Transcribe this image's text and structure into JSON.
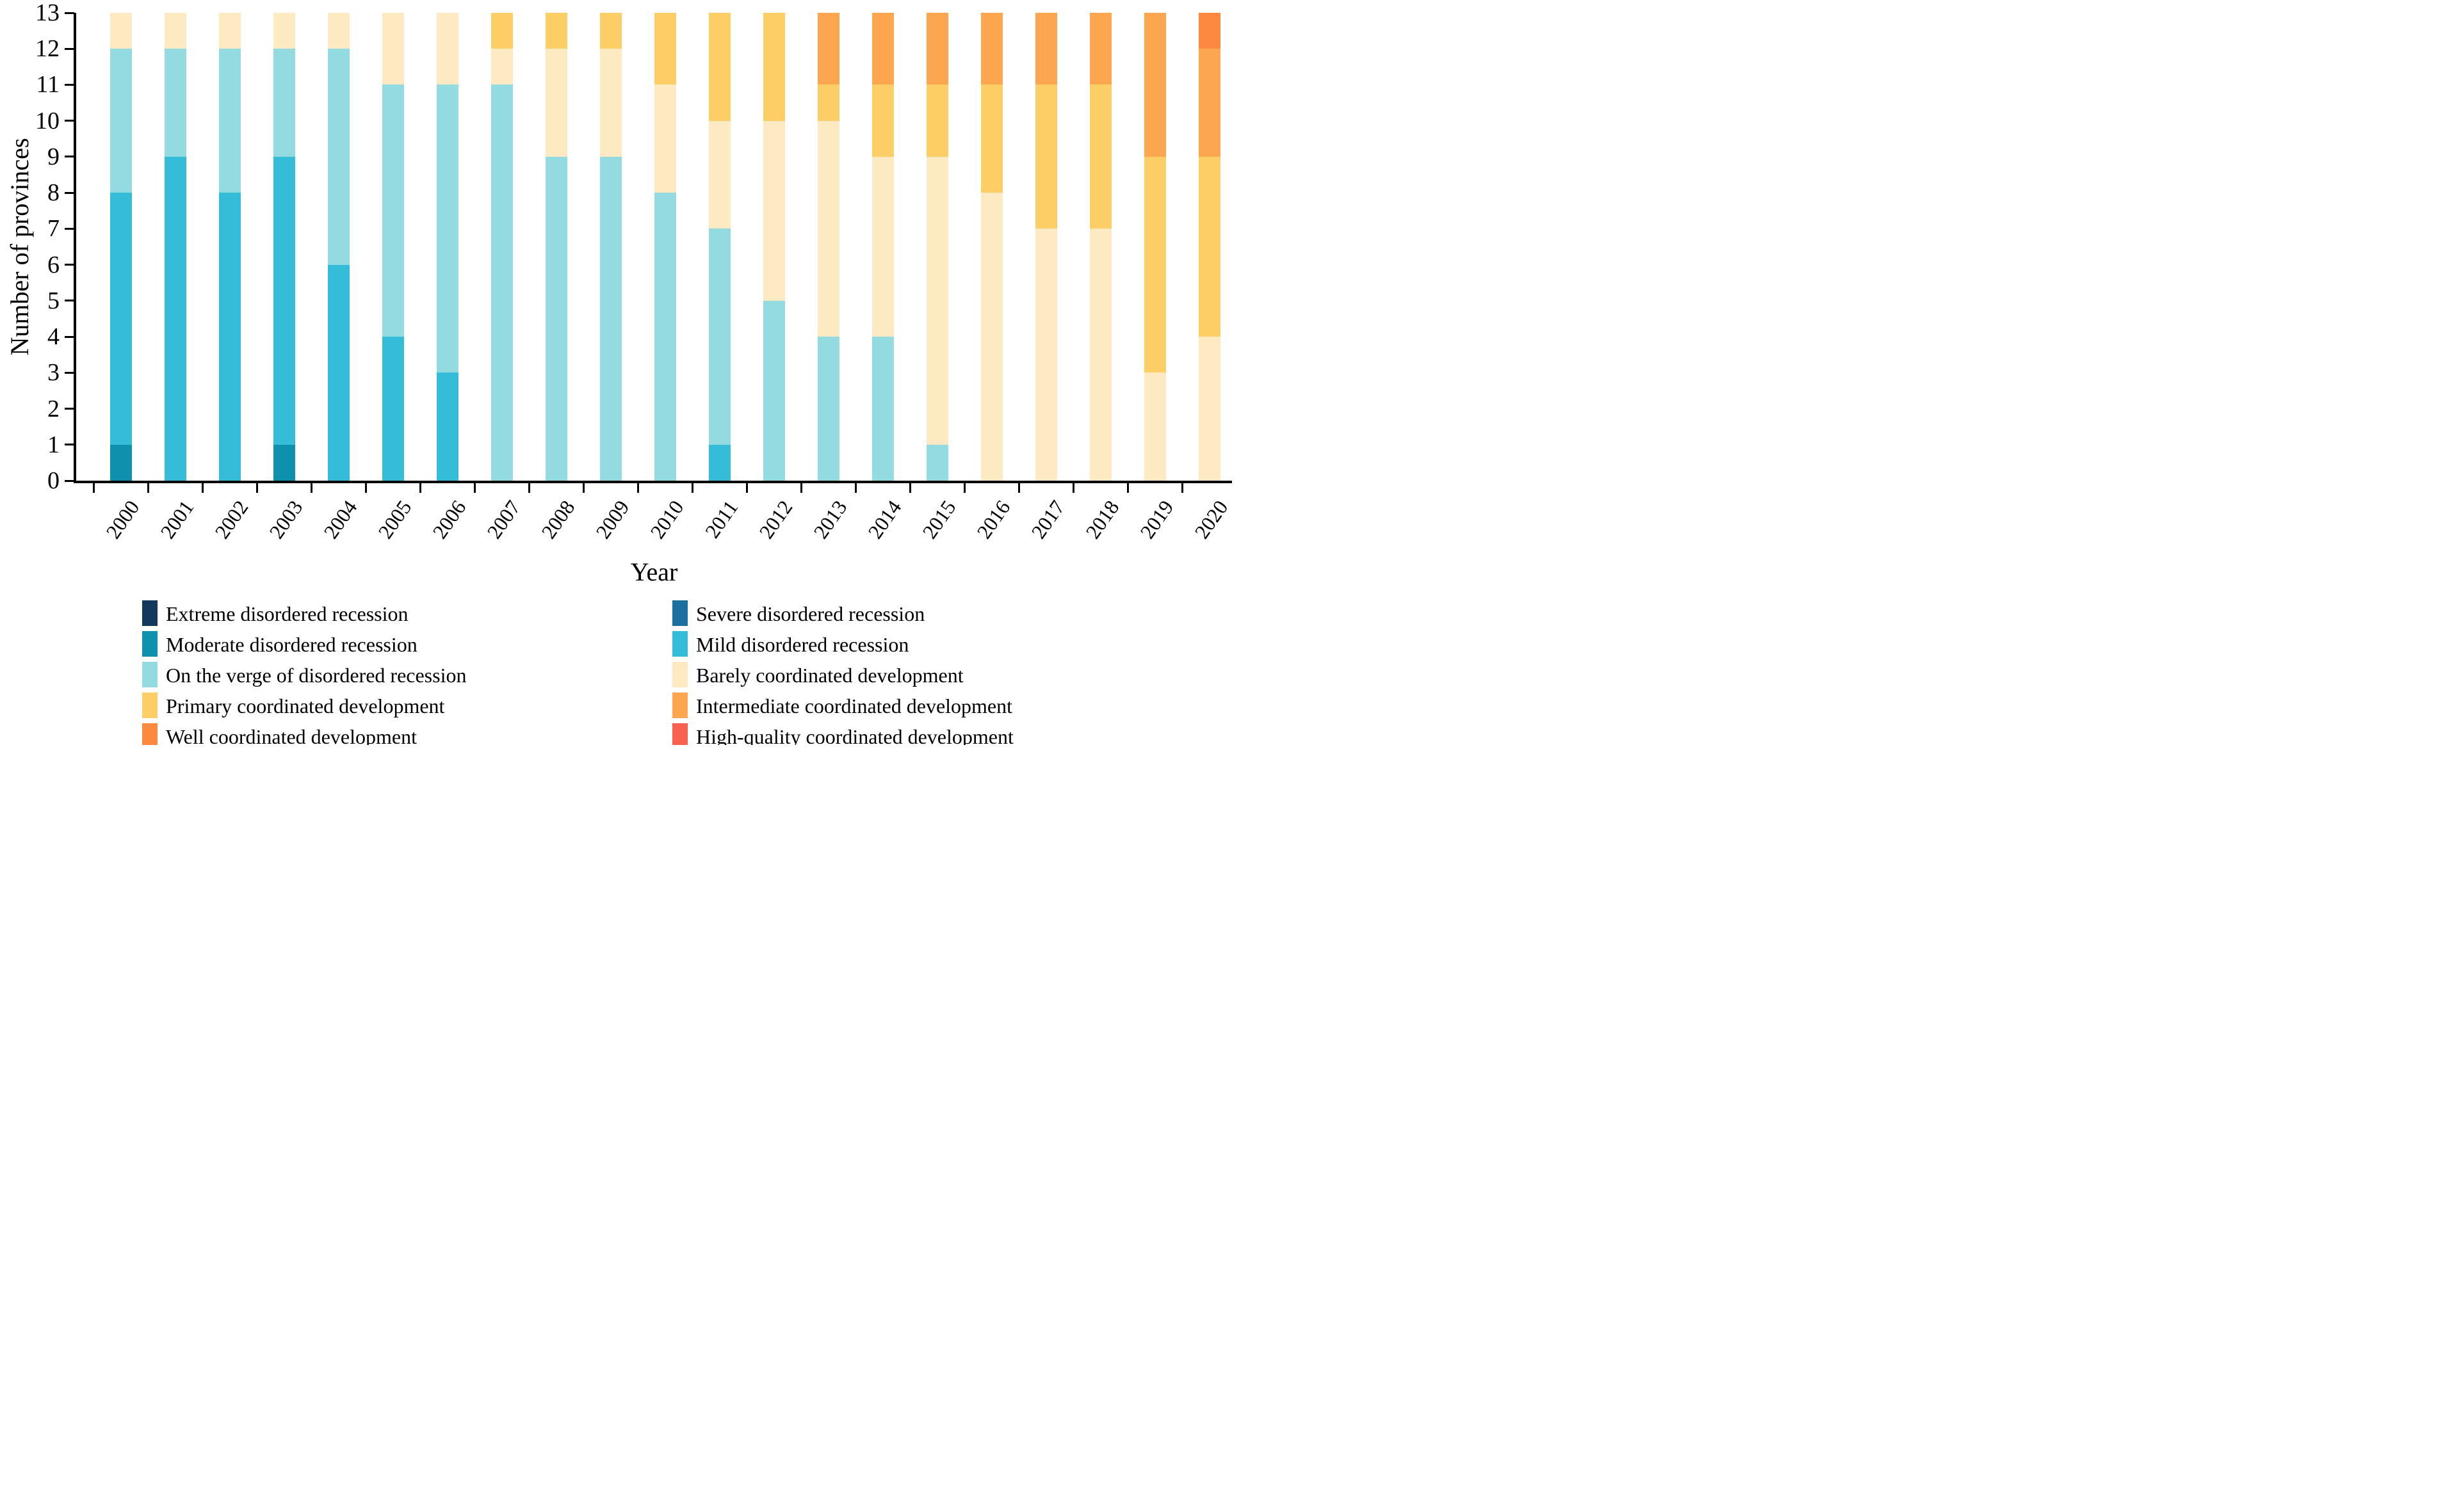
{
  "y_axis": {
    "title": "Number of provinces",
    "tick_labels": [
      "0",
      "1",
      "2",
      "3",
      "4",
      "5",
      "6",
      "7",
      "8",
      "9",
      "10",
      "11",
      "12",
      "13"
    ]
  },
  "x_axis": {
    "title": "Year"
  },
  "chart_data": {
    "type": "bar",
    "stacked": true,
    "title": "",
    "xlabel": "Year",
    "ylabel": "Number of provinces",
    "ylim": [
      0,
      13
    ],
    "grid": false,
    "legend_position": "bottom-two-columns",
    "categories": [
      "2000",
      "2001",
      "2002",
      "2003",
      "2004",
      "2005",
      "2006",
      "2007",
      "2008",
      "2009",
      "2010",
      "2011",
      "2012",
      "2013",
      "2014",
      "2015",
      "2016",
      "2017",
      "2018",
      "2019",
      "2020"
    ],
    "series": [
      {
        "name": "Extreme disordered recession",
        "color": "#13395C",
        "values": [
          0,
          0,
          0,
          0,
          0,
          0,
          0,
          0,
          0,
          0,
          0,
          0,
          0,
          0,
          0,
          0,
          0,
          0,
          0,
          0,
          0
        ]
      },
      {
        "name": "Severe disordered recession",
        "color": "#1C709F",
        "values": [
          0,
          0,
          0,
          0,
          0,
          0,
          0,
          0,
          0,
          0,
          0,
          0,
          0,
          0,
          0,
          0,
          0,
          0,
          0,
          0,
          0
        ]
      },
      {
        "name": "Moderate disordered recession",
        "color": "#0E91AD",
        "values": [
          1,
          0,
          0,
          1,
          0,
          0,
          0,
          0,
          0,
          0,
          0,
          0,
          0,
          0,
          0,
          0,
          0,
          0,
          0,
          0,
          0
        ]
      },
      {
        "name": "Mild disordered recession",
        "color": "#35BCD8",
        "values": [
          7,
          9,
          8,
          8,
          6,
          4,
          3,
          0,
          0,
          0,
          0,
          1,
          0,
          0,
          0,
          0,
          0,
          0,
          0,
          0,
          0
        ]
      },
      {
        "name": "On the verge of disordered recession",
        "color": "#93DBE1",
        "values": [
          4,
          3,
          4,
          3,
          6,
          7,
          8,
          11,
          9,
          9,
          8,
          6,
          5,
          4,
          4,
          1,
          0,
          0,
          0,
          0,
          0
        ]
      },
      {
        "name": "Barely coordinated development",
        "color": "#FDE9C2",
        "values": [
          1,
          1,
          1,
          1,
          1,
          2,
          2,
          1,
          3,
          3,
          3,
          3,
          5,
          6,
          5,
          8,
          8,
          7,
          7,
          3,
          4
        ]
      },
      {
        "name": "Primary coordinated development",
        "color": "#FDCD66",
        "values": [
          0,
          0,
          0,
          0,
          0,
          0,
          0,
          1,
          1,
          1,
          2,
          3,
          3,
          1,
          2,
          2,
          3,
          4,
          4,
          6,
          5
        ]
      },
      {
        "name": "Intermediate coordinated development",
        "color": "#FCA750",
        "values": [
          0,
          0,
          0,
          0,
          0,
          0,
          0,
          0,
          0,
          0,
          0,
          0,
          0,
          2,
          2,
          2,
          2,
          2,
          2,
          4,
          3
        ]
      },
      {
        "name": "Well coordinated development",
        "color": "#FD8840",
        "values": [
          0,
          0,
          0,
          0,
          0,
          0,
          0,
          0,
          0,
          0,
          0,
          0,
          0,
          0,
          0,
          0,
          0,
          0,
          0,
          0,
          1
        ]
      },
      {
        "name": "High-quality coordinated development",
        "color": "#F8604F",
        "values": [
          0,
          0,
          0,
          0,
          0,
          0,
          0,
          0,
          0,
          0,
          0,
          0,
          0,
          0,
          0,
          0,
          0,
          0,
          0,
          0,
          0
        ]
      }
    ]
  }
}
